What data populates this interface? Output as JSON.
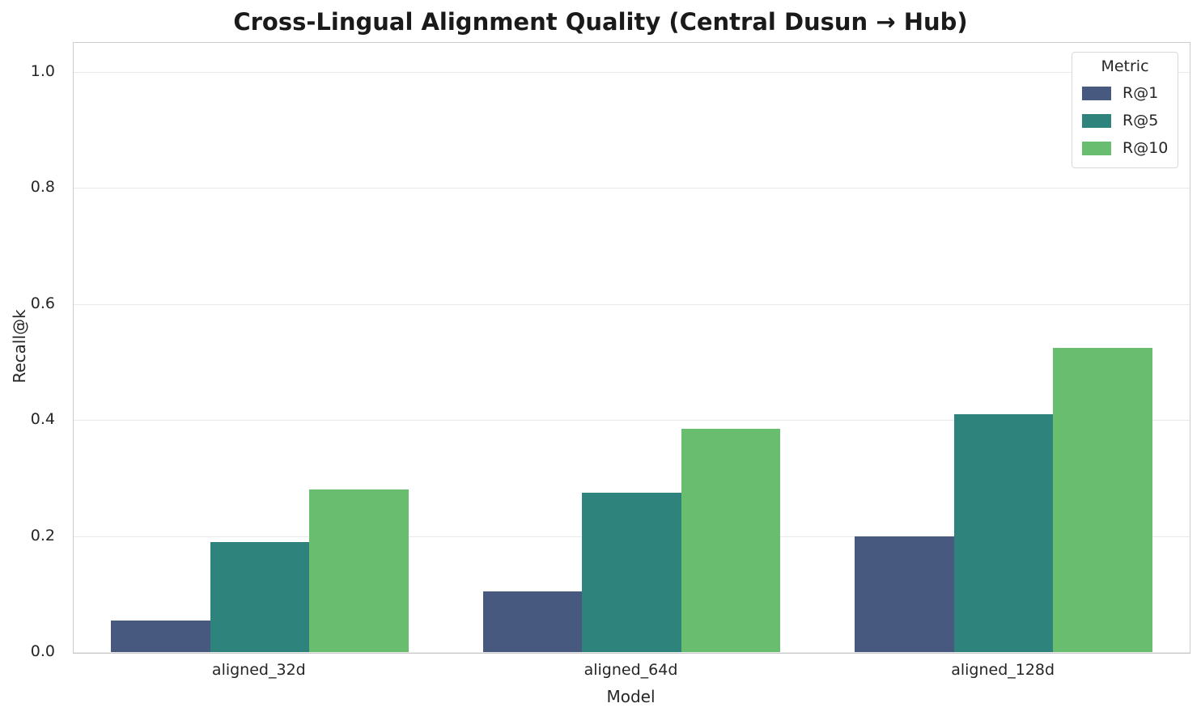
{
  "chart_data": {
    "type": "bar",
    "title": "Cross-Lingual Alignment Quality (Central Dusun → Hub)",
    "xlabel": "Model",
    "ylabel": "Recall@k",
    "categories": [
      "aligned_32d",
      "aligned_64d",
      "aligned_128d"
    ],
    "series": [
      {
        "name": "R@1",
        "color": "#47597E",
        "values": [
          0.055,
          0.105,
          0.2
        ]
      },
      {
        "name": "R@5",
        "color": "#2E837C",
        "values": [
          0.19,
          0.275,
          0.41
        ]
      },
      {
        "name": "R@10",
        "color": "#68BE6E",
        "values": [
          0.28,
          0.385,
          0.525
        ]
      }
    ],
    "ylim": [
      0,
      1.05
    ],
    "yticks": [
      0.0,
      0.2,
      0.4,
      0.6,
      0.8,
      1.0
    ],
    "ytick_labels": [
      "0.0",
      "0.2",
      "0.4",
      "0.6",
      "0.8",
      "1.0"
    ],
    "grid": true,
    "legend": {
      "title": "Metric",
      "position": "upper right"
    },
    "group_width_fraction": 0.8
  },
  "colors": {
    "background": "#ffffff",
    "grid": "#e9e9e9",
    "spine": "#cccccc",
    "text": "#262626",
    "title": "#1a1a1a",
    "legend_border": "#d9d9d9"
  }
}
